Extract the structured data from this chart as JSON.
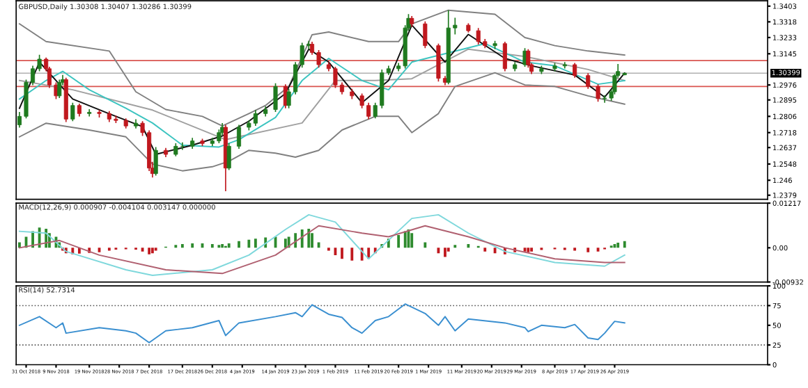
{
  "chart_data": [
    {
      "type": "candlestick",
      "title": "GBPUSD,Daily 1.30308 1.30407 1.30286 1.30399",
      "x": [
        "2018-10-29",
        "2018-10-31",
        "2018-11-02",
        "2018-11-04",
        "2018-11-06",
        "2018-11-07",
        "2018-11-09",
        "2018-11-10",
        "2018-11-11",
        "2018-11-12",
        "2018-11-14",
        "2018-11-16",
        "2018-11-19",
        "2018-11-22",
        "2018-11-25",
        "2018-11-27",
        "2018-11-30",
        "2018-12-03",
        "2018-12-05",
        "2018-12-07",
        "2018-12-08",
        "2018-12-09",
        "2018-12-12",
        "2018-12-15",
        "2018-12-17",
        "2018-12-20",
        "2018-12-23",
        "2018-12-26",
        "2018-12-28",
        "2018-12-29",
        "2018-12-30",
        "2018-12-31",
        "2019-01-03",
        "2019-01-06",
        "2019-01-08",
        "2019-01-11",
        "2019-01-14",
        "2019-01-17",
        "2019-01-18",
        "2019-01-20",
        "2019-01-22",
        "2019-01-24",
        "2019-01-25",
        "2019-01-27",
        "2019-01-30",
        "2019-02-01",
        "2019-02-03",
        "2019-02-06",
        "2019-02-09",
        "2019-02-11",
        "2019-02-13",
        "2019-02-15",
        "2019-02-17",
        "2019-02-20",
        "2019-02-22",
        "2019-02-23",
        "2019-02-24",
        "2019-02-28",
        "2019-03-04",
        "2019-03-06",
        "2019-03-07",
        "2019-03-09",
        "2019-03-13",
        "2019-03-16",
        "2019-03-18",
        "2019-03-21",
        "2019-03-24",
        "2019-03-27",
        "2019-03-30",
        "2019-03-31",
        "2019-04-01",
        "2019-04-04",
        "2019-04-08",
        "2019-04-11",
        "2019-04-14",
        "2019-04-18",
        "2019-04-21",
        "2019-04-23",
        "2019-04-25",
        "2019-04-26",
        "2019-04-27",
        "2019-04-29"
      ],
      "ohlc": [
        [
          1.276,
          1.283,
          1.2745,
          1.2806
        ],
        [
          1.2806,
          1.3005,
          1.2795,
          1.299
        ],
        [
          1.299,
          1.308,
          1.2975,
          1.3064
        ],
        [
          1.3064,
          1.314,
          1.305,
          1.3116
        ],
        [
          1.3116,
          1.3125,
          1.305,
          1.3064
        ],
        [
          1.3064,
          1.3075,
          1.296,
          1.2976
        ],
        [
          1.2976,
          1.299,
          1.29,
          1.2917
        ],
        [
          1.2917,
          1.3005,
          1.2905,
          1.299
        ],
        [
          1.299,
          1.303,
          1.2975,
          1.3005
        ],
        [
          1.3005,
          1.3015,
          1.2775,
          1.2791
        ],
        [
          1.2791,
          1.288,
          1.278,
          1.2865
        ],
        [
          1.2865,
          1.2875,
          1.2805,
          1.2821
        ],
        [
          1.2821,
          1.2845,
          1.2805,
          1.2828
        ],
        [
          1.2828,
          1.284,
          1.28,
          1.2821
        ],
        [
          1.2821,
          1.2835,
          1.2775,
          1.2791
        ],
        [
          1.2791,
          1.281,
          1.277,
          1.2784
        ],
        [
          1.2784,
          1.2795,
          1.274,
          1.2754
        ],
        [
          1.2754,
          1.279,
          1.274,
          1.2769
        ],
        [
          1.2769,
          1.278,
          1.27,
          1.2718
        ],
        [
          1.2718,
          1.273,
          1.251,
          1.2526
        ],
        [
          1.2526,
          1.256,
          1.2475,
          1.2496
        ],
        [
          1.2496,
          1.264,
          1.2485,
          1.2622
        ],
        [
          1.2622,
          1.2635,
          1.2585,
          1.26
        ],
        [
          1.26,
          1.266,
          1.259,
          1.2644
        ],
        [
          1.2644,
          1.2665,
          1.2625,
          1.2644
        ],
        [
          1.2644,
          1.269,
          1.263,
          1.2673
        ],
        [
          1.2673,
          1.2685,
          1.2645,
          1.2659
        ],
        [
          1.2659,
          1.269,
          1.2645,
          1.2673
        ],
        [
          1.2673,
          1.2735,
          1.266,
          1.2718
        ],
        [
          1.2718,
          1.277,
          1.2705,
          1.2747
        ],
        [
          1.2747,
          1.276,
          1.2401,
          1.2526
        ],
        [
          1.2526,
          1.266,
          1.2515,
          1.2644
        ],
        [
          1.2644,
          1.276,
          1.263,
          1.2747
        ],
        [
          1.2747,
          1.2785,
          1.273,
          1.2769
        ],
        [
          1.2769,
          1.284,
          1.2755,
          1.2821
        ],
        [
          1.2821,
          1.286,
          1.2805,
          1.2843
        ],
        [
          1.2843,
          1.2985,
          1.283,
          1.2968
        ],
        [
          1.2968,
          1.298,
          1.285,
          1.2865
        ],
        [
          1.2865,
          1.2955,
          1.285,
          1.2939
        ],
        [
          1.2939,
          1.31,
          1.2925,
          1.3086
        ],
        [
          1.3086,
          1.3205,
          1.307,
          1.3189
        ],
        [
          1.3189,
          1.3215,
          1.317,
          1.3197
        ],
        [
          1.3197,
          1.321,
          1.314,
          1.3152
        ],
        [
          1.3152,
          1.3165,
          1.307,
          1.3086
        ],
        [
          1.3086,
          1.31,
          1.305,
          1.3064
        ],
        [
          1.3064,
          1.3075,
          1.296,
          1.2976
        ],
        [
          1.2976,
          1.299,
          1.2925,
          1.2939
        ],
        [
          1.2939,
          1.2955,
          1.29,
          1.2917
        ],
        [
          1.2917,
          1.293,
          1.285,
          1.2865
        ],
        [
          1.2865,
          1.288,
          1.279,
          1.2806
        ],
        [
          1.2806,
          1.288,
          1.2795,
          1.2865
        ],
        [
          1.2865,
          1.306,
          1.285,
          1.3042
        ],
        [
          1.3042,
          1.308,
          1.303,
          1.3064
        ],
        [
          1.3064,
          1.3095,
          1.305,
          1.3079
        ],
        [
          1.3079,
          1.33,
          1.3065,
          1.3285
        ],
        [
          1.3285,
          1.336,
          1.327,
          1.3337
        ],
        [
          1.3337,
          1.335,
          1.329,
          1.3307
        ],
        [
          1.3307,
          1.332,
          1.3175,
          1.3189
        ],
        [
          1.3189,
          1.32,
          1.2995,
          1.3012
        ],
        [
          1.3012,
          1.3025,
          1.2975,
          1.299
        ],
        [
          1.299,
          1.3381,
          1.298,
          1.3285
        ],
        [
          1.3285,
          1.334,
          1.325,
          1.33
        ],
        [
          1.33,
          1.331,
          1.326,
          1.327
        ],
        [
          1.327,
          1.3285,
          1.3195,
          1.3211
        ],
        [
          1.3211,
          1.3225,
          1.3175,
          1.3189
        ],
        [
          1.3189,
          1.3215,
          1.317,
          1.32
        ],
        [
          1.32,
          1.321,
          1.305,
          1.3064
        ],
        [
          1.3064,
          1.31,
          1.305,
          1.3086
        ],
        [
          1.3086,
          1.3175,
          1.3075,
          1.316
        ],
        [
          1.316,
          1.317,
          1.307,
          1.3086
        ],
        [
          1.3086,
          1.3095,
          1.3035,
          1.3049
        ],
        [
          1.3049,
          1.308,
          1.3035,
          1.3064
        ],
        [
          1.3064,
          1.3095,
          1.305,
          1.3079
        ],
        [
          1.3079,
          1.31,
          1.3065,
          1.3086
        ],
        [
          1.3086,
          1.3095,
          1.3015,
          1.3027
        ],
        [
          1.3027,
          1.304,
          1.2955,
          1.2968
        ],
        [
          1.2968,
          1.298,
          1.2885,
          1.2902
        ],
        [
          1.2902,
          1.292,
          1.288,
          1.2905
        ],
        [
          1.2905,
          1.295,
          1.289,
          1.2939
        ],
        [
          1.2939,
          1.3035,
          1.2925,
          1.3027
        ],
        [
          1.3027,
          1.309,
          1.3015,
          1.3049
        ],
        [
          1.3031,
          1.3041,
          1.3029,
          1.304
        ]
      ],
      "colors": [
        "#1f7a1f",
        "#1f7a1f",
        "#1f7a1f",
        "#1f7a1f",
        "#c0181e",
        "#c0181e",
        "#c0181e",
        "#1f7a1f",
        "#1f7a1f",
        "#c0181e",
        "#1f7a1f",
        "#c0181e",
        "#1f7a1f",
        "#c0181e",
        "#c0181e",
        "#c0181e",
        "#c0181e",
        "#1f7a1f",
        "#c0181e",
        "#c0181e",
        "#c0181e",
        "#1f7a1f",
        "#c0181e",
        "#1f7a1f",
        "#1f7a1f",
        "#1f7a1f",
        "#c0181e",
        "#1f7a1f",
        "#1f7a1f",
        "#1f7a1f",
        "#c0181e",
        "#1f7a1f",
        "#1f7a1f",
        "#1f7a1f",
        "#1f7a1f",
        "#1f7a1f",
        "#1f7a1f",
        "#c0181e",
        "#1f7a1f",
        "#1f7a1f",
        "#1f7a1f",
        "#1f7a1f",
        "#c0181e",
        "#c0181e",
        "#c0181e",
        "#c0181e",
        "#c0181e",
        "#c0181e",
        "#c0181e",
        "#c0181e",
        "#1f7a1f",
        "#1f7a1f",
        "#1f7a1f",
        "#1f7a1f",
        "#1f7a1f",
        "#1f7a1f",
        "#c0181e",
        "#c0181e",
        "#c0181e",
        "#c0181e",
        "#1f7a1f",
        "#1f7a1f",
        "#c0181e",
        "#c0181e",
        "#c0181e",
        "#1f7a1f",
        "#c0181e",
        "#1f7a1f",
        "#1f7a1f",
        "#c0181e",
        "#c0181e",
        "#1f7a1f",
        "#1f7a1f",
        "#1f7a1f",
        "#c0181e",
        "#c0181e",
        "#c0181e",
        "#1f7a1f",
        "#1f7a1f",
        "#1f7a1f",
        "#1f7a1f",
        "#1f7a1f"
      ],
      "series": [
        {
          "type": "line",
          "color": "#808080",
          "x": [
            "2018-10-29",
            "2018-11-06",
            "2018-11-25",
            "2018-12-03",
            "2018-12-12",
            "2018-12-23",
            "2018-12-29",
            "2019-01-06",
            "2019-01-11",
            "2019-01-18",
            "2019-01-25",
            "2019-01-30",
            "2019-02-11",
            "2019-02-20",
            "2019-02-24",
            "2019-03-07",
            "2019-03-21",
            "2019-03-30",
            "2019-04-08",
            "2019-04-18",
            "2019-04-29"
          ],
          "values": [
            1.3307,
            1.3211,
            1.316,
            1.2939,
            1.2843,
            1.2806,
            1.2754,
            1.2821,
            1.2865,
            1.2968,
            1.3248,
            1.3263,
            1.3211,
            1.3211,
            1.3307,
            1.3381,
            1.3359,
            1.3233,
            1.3189,
            1.316,
            1.3138
          ]
        },
        {
          "type": "line",
          "color": "#808080",
          "x": [
            "2018-10-29",
            "2018-11-06",
            "2018-11-19",
            "2018-11-30",
            "2018-12-08",
            "2018-12-17",
            "2018-12-26",
            "2018-12-31",
            "2019-01-06",
            "2019-01-14",
            "2019-01-20",
            "2019-01-27",
            "2019-02-03",
            "2019-02-13",
            "2019-02-20",
            "2019-02-24",
            "2019-03-04",
            "2019-03-09",
            "2019-03-21",
            "2019-03-30",
            "2019-04-08",
            "2019-04-18",
            "2019-04-29"
          ],
          "values": [
            1.2695,
            1.2769,
            1.2732,
            1.2695,
            1.2548,
            1.2511,
            1.2533,
            1.2563,
            1.2622,
            1.2607,
            1.2585,
            1.2622,
            1.2732,
            1.2806,
            1.2806,
            1.2718,
            1.2821,
            1.2968,
            1.3042,
            1.2976,
            1.2968,
            1.2917,
            1.2872
          ]
        },
        {
          "type": "line",
          "color": "#a0a0a0",
          "x": [
            "2018-10-29",
            "2018-11-14",
            "2018-12-08",
            "2018-12-30",
            "2019-01-22",
            "2019-02-01",
            "2019-02-13",
            "2019-02-24",
            "2019-03-13",
            "2019-03-30",
            "2019-04-18",
            "2019-04-29"
          ],
          "values": [
            1.3,
            1.295,
            1.284,
            1.268,
            1.277,
            1.3,
            1.3,
            1.301,
            1.317,
            1.313,
            1.306,
            1.3
          ]
        },
        {
          "type": "line",
          "color": "#3cc4c0",
          "x": [
            "2018-10-29",
            "2018-11-06",
            "2018-11-11",
            "2018-11-19",
            "2018-11-30",
            "2018-12-08",
            "2018-12-17",
            "2018-12-28",
            "2019-01-03",
            "2019-01-14",
            "2019-01-22",
            "2019-01-30",
            "2019-02-09",
            "2019-02-17",
            "2019-02-24",
            "2019-03-07",
            "2019-03-18",
            "2019-03-30",
            "2019-04-08",
            "2019-04-21",
            "2019-04-29"
          ],
          "values": [
            1.29,
            1.3,
            1.305,
            1.295,
            1.285,
            1.277,
            1.265,
            1.264,
            1.268,
            1.28,
            1.3,
            1.312,
            1.3,
            1.295,
            1.31,
            1.315,
            1.32,
            1.31,
            1.308,
            1.298,
            1.3
          ]
        },
        {
          "type": "line",
          "color": "#111111",
          "x": [
            "2018-10-29",
            "2018-11-04",
            "2018-11-09",
            "2018-11-14",
            "2018-11-25",
            "2018-12-05",
            "2018-12-09",
            "2018-12-20",
            "2018-12-29",
            "2019-01-06",
            "2019-01-17",
            "2019-01-24",
            "2019-01-30",
            "2019-02-09",
            "2019-02-17",
            "2019-02-24",
            "2019-03-06",
            "2019-03-13",
            "2019-03-24",
            "2019-04-01",
            "2019-04-14",
            "2019-04-23",
            "2019-04-29"
          ],
          "values": [
            1.285,
            1.31,
            1.3,
            1.29,
            1.282,
            1.275,
            1.26,
            1.265,
            1.27,
            1.278,
            1.293,
            1.317,
            1.31,
            1.288,
            1.3,
            1.33,
            1.31,
            1.325,
            1.312,
            1.308,
            1.303,
            1.291,
            1.304
          ]
        }
      ],
      "ref_lines": [
        {
          "axis": "y",
          "value": 1.3108,
          "color": "#d9534f"
        },
        {
          "axis": "y",
          "value": 1.2968,
          "color": "#d9534f"
        },
        {
          "axis": "y",
          "value": 1.30399,
          "label": "1.30399",
          "color": "#b0b0b0"
        }
      ],
      "xlim": [
        "2018-10-28",
        "2019-06-11"
      ],
      "ylim": [
        1.2357,
        1.3432
      ],
      "yticks": [
        1.2379,
        1.246,
        1.2548,
        1.2637,
        1.2718,
        1.2806,
        1.2895,
        1.2976,
        1.3145,
        1.3233,
        1.3318,
        1.3403
      ],
      "tick_labels": "y"
    },
    {
      "type": "bar",
      "title": "MACD(12,26,9) 0.000907 -0.004104 0.003147 0.000000",
      "x": [
        "2018-10-29",
        "2018-10-31",
        "2018-11-02",
        "2018-11-04",
        "2018-11-06",
        "2018-11-07",
        "2018-11-09",
        "2018-11-10",
        "2018-11-11",
        "2018-11-12",
        "2018-11-14",
        "2018-11-16",
        "2018-11-19",
        "2018-11-22",
        "2018-11-25",
        "2018-11-27",
        "2018-11-30",
        "2018-12-03",
        "2018-12-05",
        "2018-12-07",
        "2018-12-08",
        "2018-12-09",
        "2018-12-12",
        "2018-12-15",
        "2018-12-17",
        "2018-12-20",
        "2018-12-23",
        "2018-12-26",
        "2018-12-28",
        "2018-12-29",
        "2018-12-30",
        "2018-12-31",
        "2019-01-03",
        "2019-01-06",
        "2019-01-08",
        "2019-01-11",
        "2019-01-14",
        "2019-01-17",
        "2019-01-18",
        "2019-01-20",
        "2019-01-22",
        "2019-01-24",
        "2019-01-25",
        "2019-01-27",
        "2019-01-30",
        "2019-02-01",
        "2019-02-03",
        "2019-02-06",
        "2019-02-09",
        "2019-02-11",
        "2019-02-13",
        "2019-02-15",
        "2019-02-17",
        "2019-02-20",
        "2019-02-22",
        "2019-02-23",
        "2019-02-24",
        "2019-02-28",
        "2019-03-04",
        "2019-03-06",
        "2019-03-07",
        "2019-03-09",
        "2019-03-13",
        "2019-03-16",
        "2019-03-18",
        "2019-03-21",
        "2019-03-24",
        "2019-03-27",
        "2019-03-30",
        "2019-03-31",
        "2019-04-01",
        "2019-04-04",
        "2019-04-08",
        "2019-04-11",
        "2019-04-14",
        "2019-04-18",
        "2019-04-21",
        "2019-04-23",
        "2019-04-25",
        "2019-04-26",
        "2019-04-27",
        "2019-04-29"
      ],
      "values": [
        0.0015,
        0.003,
        0.0045,
        0.0055,
        0.0052,
        0.004,
        0.003,
        0.0015,
        -0.0008,
        -0.0015,
        -0.0018,
        -0.0016,
        -0.0014,
        -0.0012,
        -0.0008,
        -0.0005,
        -0.0004,
        -0.0005,
        -0.001,
        -0.0018,
        -0.0015,
        -0.0008,
        0.0003,
        0.0008,
        0.001,
        0.0012,
        0.0012,
        0.001,
        0.0008,
        0.001,
        0.0005,
        0.0012,
        0.0018,
        0.0022,
        0.0025,
        0.0028,
        0.003,
        0.0025,
        0.003,
        0.004,
        0.005,
        0.0052,
        0.004,
        0.0015,
        -0.0008,
        -0.002,
        -0.003,
        -0.0035,
        -0.0035,
        -0.003,
        -0.0015,
        0.001,
        0.0025,
        0.0035,
        0.0045,
        0.005,
        0.004,
        0.0015,
        -0.0015,
        -0.0025,
        -0.001,
        0.0008,
        0.001,
        0.0005,
        -0.001,
        -0.0015,
        -0.0018,
        -0.0012,
        -0.001,
        -0.0012,
        -0.001,
        -0.0006,
        -0.0004,
        -0.0006,
        -0.0008,
        -0.0012,
        -0.001,
        -0.0004,
        0.0006,
        0.001,
        0.0014,
        0.0018
      ],
      "colors": [
        "#2e8b2e",
        "#2e8b2e",
        "#2e8b2e",
        "#2e8b2e",
        "#2e8b2e",
        "#2e8b2e",
        "#2e8b2e",
        "#2e8b2e",
        "#c0181e",
        "#c0181e",
        "#c0181e",
        "#c0181e",
        "#c0181e",
        "#c0181e",
        "#c0181e",
        "#c0181e",
        "#c0181e",
        "#c0181e",
        "#c0181e",
        "#c0181e",
        "#c0181e",
        "#c0181e",
        "#2e8b2e",
        "#2e8b2e",
        "#2e8b2e",
        "#2e8b2e",
        "#2e8b2e",
        "#2e8b2e",
        "#2e8b2e",
        "#2e8b2e",
        "#2e8b2e",
        "#2e8b2e",
        "#2e8b2e",
        "#2e8b2e",
        "#2e8b2e",
        "#2e8b2e",
        "#2e8b2e",
        "#2e8b2e",
        "#2e8b2e",
        "#2e8b2e",
        "#2e8b2e",
        "#2e8b2e",
        "#2e8b2e",
        "#2e8b2e",
        "#c0181e",
        "#c0181e",
        "#c0181e",
        "#c0181e",
        "#c0181e",
        "#c0181e",
        "#c0181e",
        "#2e8b2e",
        "#2e8b2e",
        "#2e8b2e",
        "#2e8b2e",
        "#2e8b2e",
        "#2e8b2e",
        "#2e8b2e",
        "#c0181e",
        "#c0181e",
        "#c0181e",
        "#2e8b2e",
        "#2e8b2e",
        "#2e8b2e",
        "#c0181e",
        "#c0181e",
        "#c0181e",
        "#c0181e",
        "#c0181e",
        "#c0181e",
        "#c0181e",
        "#c0181e",
        "#c0181e",
        "#c0181e",
        "#c0181e",
        "#c0181e",
        "#c0181e",
        "#c0181e",
        "#2e8b2e",
        "#2e8b2e",
        "#2e8b2e",
        "#2e8b2e"
      ],
      "series": [
        {
          "type": "line",
          "color": "#7fd8dc",
          "x": [
            "2018-10-29",
            "2018-11-06",
            "2018-11-12",
            "2018-11-30",
            "2018-12-08",
            "2018-12-26",
            "2019-01-06",
            "2019-01-17",
            "2019-01-24",
            "2019-02-01",
            "2019-02-11",
            "2019-02-24",
            "2019-03-04",
            "2019-03-13",
            "2019-03-24",
            "2019-04-08",
            "2019-04-23",
            "2019-04-29"
          ],
          "values": [
            0.0045,
            0.004,
            -0.001,
            -0.006,
            -0.0075,
            -0.006,
            -0.002,
            0.005,
            0.009,
            0.007,
            -0.003,
            0.008,
            0.009,
            0.004,
            -0.001,
            -0.004,
            -0.005,
            -0.002
          ]
        },
        {
          "type": "line",
          "color": "#b06070",
          "x": [
            "2018-10-29",
            "2018-11-10",
            "2018-11-22",
            "2018-12-12",
            "2018-12-29",
            "2019-01-14",
            "2019-01-27",
            "2019-02-09",
            "2019-02-17",
            "2019-02-28",
            "2019-03-13",
            "2019-03-24",
            "2019-04-08",
            "2019-04-23",
            "2019-04-29"
          ],
          "values": [
            0.0,
            0.002,
            -0.002,
            -0.006,
            -0.007,
            -0.002,
            0.006,
            0.004,
            0.003,
            0.006,
            0.003,
            0.0,
            -0.003,
            -0.004,
            -0.004
          ]
        }
      ],
      "xlim": [
        "2018-10-28",
        "2019-06-11"
      ],
      "ylim": [
        -0.00932,
        0.01217
      ],
      "yticks": [
        -0.00932,
        {
          "value": 0,
          "label": "0.00"
        },
        0.01217
      ],
      "tick_labels": "y"
    },
    {
      "type": "line",
      "title": "RSI(14) 52.7314",
      "series": [
        {
          "color": "#3a8fd0",
          "x": [
            "2018-10-29",
            "2018-11-04",
            "2018-11-09",
            "2018-11-11",
            "2018-11-12",
            "2018-11-22",
            "2018-11-30",
            "2018-12-03",
            "2018-12-07",
            "2018-12-12",
            "2018-12-20",
            "2018-12-28",
            "2018-12-30",
            "2019-01-03",
            "2019-01-14",
            "2019-01-20",
            "2019-01-22",
            "2019-01-25",
            "2019-01-30",
            "2019-02-03",
            "2019-02-06",
            "2019-02-09",
            "2019-02-13",
            "2019-02-17",
            "2019-02-22",
            "2019-02-28",
            "2019-03-04",
            "2019-03-06",
            "2019-03-09",
            "2019-03-13",
            "2019-03-24",
            "2019-03-30",
            "2019-03-31",
            "2019-04-04",
            "2019-04-11",
            "2019-04-14",
            "2019-04-18",
            "2019-04-21",
            "2019-04-23",
            "2019-04-26",
            "2019-04-29"
          ],
          "values": [
            50,
            61,
            47,
            53,
            40,
            47,
            43,
            40,
            28,
            43,
            47,
            56,
            37,
            53,
            61,
            66,
            61,
            76,
            64,
            60,
            47,
            40,
            56,
            61,
            77,
            65,
            50,
            61,
            43,
            58,
            53,
            47,
            42,
            50,
            47,
            51,
            34,
            32,
            40,
            55,
            53
          ]
        }
      ],
      "ref_lines": [
        {
          "axis": "y",
          "value": 75,
          "line_style": "dotted",
          "color": "#555555"
        },
        {
          "axis": "y",
          "value": 25,
          "line_style": "dotted",
          "color": "#555555"
        }
      ],
      "xlim": [
        "2018-10-28",
        "2019-06-11"
      ],
      "ylim": [
        0,
        100
      ],
      "yticks": [
        0,
        25,
        50,
        75,
        100
      ],
      "xticks": [
        {
          "value": "2018-10-31",
          "label": "31 Oct 2018"
        },
        {
          "value": "2018-11-09",
          "label": "9 Nov 2018"
        },
        {
          "value": "2018-11-19",
          "label": "19 Nov 2018"
        },
        {
          "value": "2018-11-28",
          "label": "28 Nov 2018"
        },
        {
          "value": "2018-12-07",
          "label": "7 Dec 2018"
        },
        {
          "value": "2018-12-17",
          "label": "17 Dec 2018"
        },
        {
          "value": "2018-12-26",
          "label": "26 Dec 2018"
        },
        {
          "value": "2019-01-04",
          "label": "4 Jan 2019"
        },
        {
          "value": "2019-01-14",
          "label": "14 Jan 2019"
        },
        {
          "value": "2019-01-23",
          "label": "23 Jan 2019"
        },
        {
          "value": "2019-02-01",
          "label": "1 Feb 2019"
        },
        {
          "value": "2019-02-11",
          "label": "11 Feb 2019"
        },
        {
          "value": "2019-02-20",
          "label": "20 Feb 2019"
        },
        {
          "value": "2019-03-01",
          "label": "1 Mar 2019"
        },
        {
          "value": "2019-03-11",
          "label": "11 Mar 2019"
        },
        {
          "value": "2019-03-20",
          "label": "20 Mar 2019"
        },
        {
          "value": "2019-03-29",
          "label": "29 Mar 2019"
        },
        {
          "value": "2019-04-08",
          "label": "8 Apr 2019"
        },
        {
          "value": "2019-04-17",
          "label": "17 Apr 2019"
        },
        {
          "value": "2019-04-26",
          "label": "26 Apr 2019"
        }
      ]
    }
  ]
}
